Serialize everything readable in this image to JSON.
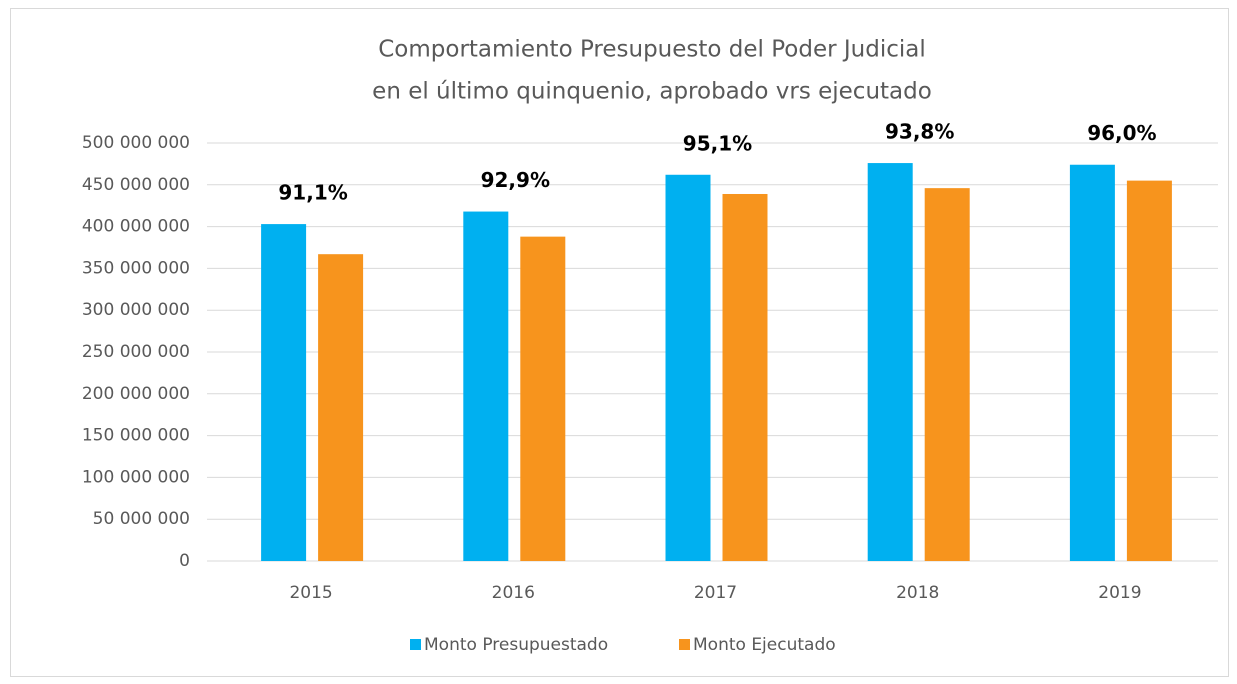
{
  "chart_data": {
    "type": "bar",
    "title": [
      "Comportamiento Presupuesto del Poder Judicial",
      "en el último quinquenio, aprobado vrs ejecutado"
    ],
    "categories": [
      "2015",
      "2016",
      "2017",
      "2018",
      "2019"
    ],
    "series": [
      {
        "name": "Monto Presupuestado",
        "color": "#00b0f0",
        "values": [
          403000000,
          418000000,
          462000000,
          476000000,
          474000000
        ]
      },
      {
        "name": "Monto Ejecutado",
        "color": "#f7941d",
        "values": [
          367000000,
          388000000,
          439000000,
          446000000,
          455000000
        ]
      }
    ],
    "annotations": [
      "91,1%",
      "92,9%",
      "95,1%",
      "93,8%",
      "96,0%"
    ],
    "ylim": [
      0,
      500000000
    ],
    "yticks": [
      0,
      {
        "value": 50000000,
        "label": "50 000 000"
      },
      {
        "value": 100000000,
        "label": "100 000 000"
      },
      {
        "value": 150000000,
        "label": "150 000 000"
      },
      {
        "value": 200000000,
        "label": "200 000 000"
      },
      {
        "value": 250000000,
        "label": "250 000 000"
      },
      {
        "value": 300000000,
        "label": "300 000 000"
      },
      {
        "value": 350000000,
        "label": "350 000 000"
      },
      {
        "value": 400000000,
        "label": "400 000 000"
      },
      {
        "value": 450000000,
        "label": "450 000 000"
      },
      {
        "value": 500000000,
        "label": "500 000 000"
      }
    ],
    "grid": true,
    "legend": "bottom"
  }
}
